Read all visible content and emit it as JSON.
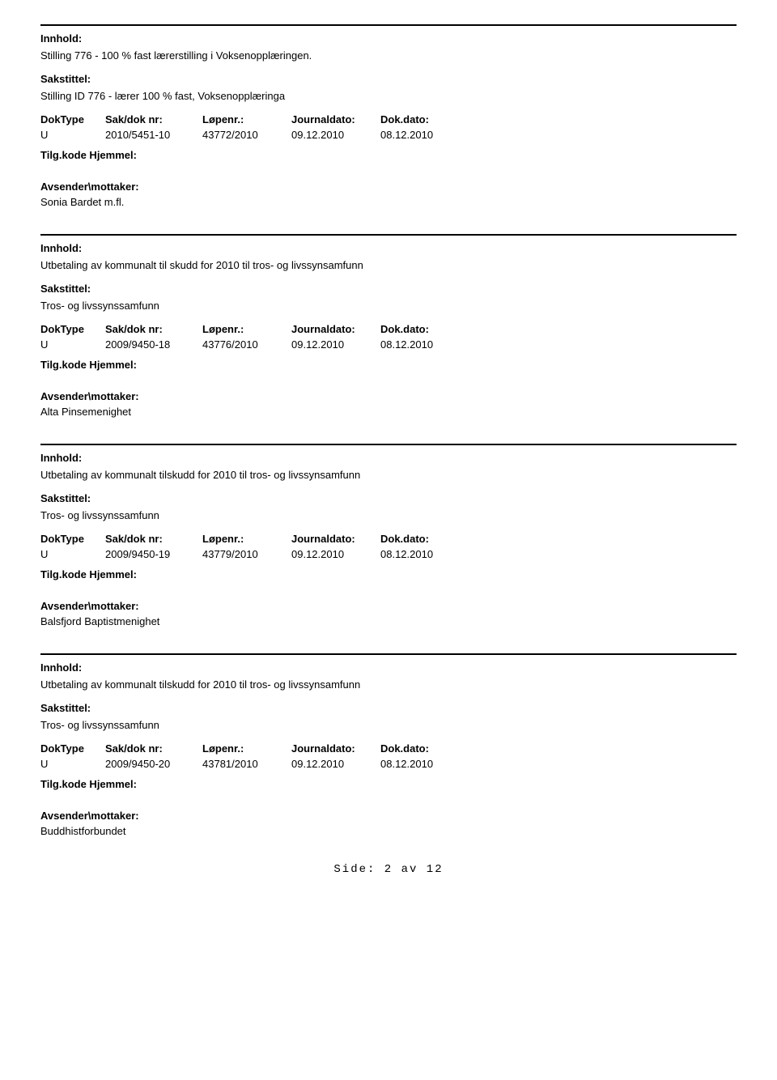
{
  "labels": {
    "innhold": "Innhold:",
    "sakstittel": "Sakstittel:",
    "tilgkode": "Tilg.kode Hjemmel:",
    "avsender": "Avsender\\mottaker:"
  },
  "headers": {
    "doktype": "DokType",
    "sakdok": "Sak/dok nr:",
    "lopenr": "Løpenr.:",
    "journaldato": "Journaldato:",
    "dokdato": "Dok.dato:"
  },
  "records": [
    {
      "innhold": "Stilling 776 - 100 % fast lærerstilling i Voksenopplæringen.",
      "sakstittel": "Stilling ID 776 - lærer 100 % fast, Voksenopplæringa",
      "doktype": "U",
      "sakdok": "2010/5451-10",
      "lopenr": "43772/2010",
      "journaldato": "09.12.2010",
      "dokdato": "08.12.2010",
      "avsender": "Sonia Bardet m.fl."
    },
    {
      "innhold": "Utbetaling av kommunalt til skudd for 2010 til tros- og livssynsamfunn",
      "sakstittel": "Tros- og livssynssamfunn",
      "doktype": "U",
      "sakdok": "2009/9450-18",
      "lopenr": "43776/2010",
      "journaldato": "09.12.2010",
      "dokdato": "08.12.2010",
      "avsender": "Alta Pinsemenighet"
    },
    {
      "innhold": "Utbetaling av kommunalt tilskudd for 2010 til tros- og livssynsamfunn",
      "sakstittel": "Tros- og livssynssamfunn",
      "doktype": "U",
      "sakdok": "2009/9450-19",
      "lopenr": "43779/2010",
      "journaldato": "09.12.2010",
      "dokdato": "08.12.2010",
      "avsender": "Balsfjord Baptistmenighet"
    },
    {
      "innhold": "Utbetaling av kommunalt tilskudd for 2010 til tros- og livssynsamfunn",
      "sakstittel": "Tros- og livssynssamfunn",
      "doktype": "U",
      "sakdok": "2009/9450-20",
      "lopenr": "43781/2010",
      "journaldato": "09.12.2010",
      "dokdato": "08.12.2010",
      "avsender": "Buddhistforbundet"
    }
  ],
  "footer": "Side: 2 av 12"
}
